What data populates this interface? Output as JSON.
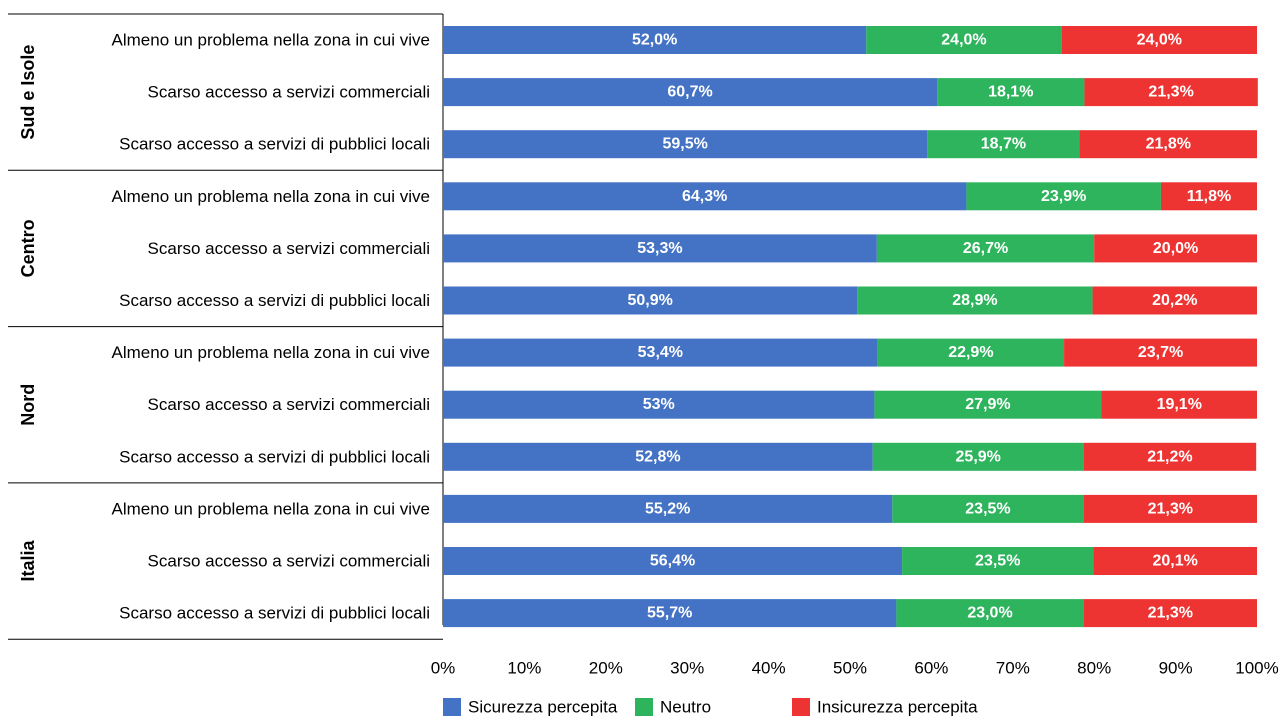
{
  "chart_data": {
    "type": "bar",
    "orientation": "horizontal",
    "stacked": true,
    "percent_stacked": true,
    "x_ticks": [
      "0%",
      "10%",
      "20%",
      "30%",
      "40%",
      "50%",
      "60%",
      "70%",
      "80%",
      "90%",
      "100%"
    ],
    "xlim": [
      0,
      100
    ],
    "grid": false,
    "legend_position": "bottom",
    "series": [
      {
        "name": "Sicurezza percepita",
        "color": "#4472C4"
      },
      {
        "name": "Neutro",
        "color": "#2DB45D"
      },
      {
        "name": "Insicurezza percepita",
        "color": "#EE3333"
      }
    ],
    "groups": [
      {
        "name": "Sud e Isole",
        "rows": [
          {
            "category": "Almeno un problema nella zona in cui vive",
            "values": [
              52.0,
              24.0,
              24.0
            ],
            "labels": [
              "52,0%",
              "24,0%",
              "24,0%"
            ]
          },
          {
            "category": "Scarso accesso a servizi commerciali",
            "values": [
              60.7,
              18.1,
              21.3
            ],
            "labels": [
              "60,7%",
              "18,1%",
              "21,3%"
            ]
          },
          {
            "category": "Scarso accesso a servizi di pubblici locali",
            "values": [
              59.5,
              18.7,
              21.8
            ],
            "labels": [
              "59,5%",
              "18,7%",
              "21,8%"
            ]
          }
        ]
      },
      {
        "name": "Centro",
        "rows": [
          {
            "category": "Almeno un problema nella zona in cui vive",
            "values": [
              64.3,
              23.9,
              11.8
            ],
            "labels": [
              "64,3%",
              "23,9%",
              "11,8%"
            ]
          },
          {
            "category": "Scarso accesso a servizi commerciali",
            "values": [
              53.3,
              26.7,
              20.0
            ],
            "labels": [
              "53,3%",
              "26,7%",
              "20,0%"
            ]
          },
          {
            "category": "Scarso accesso a servizi di pubblici locali",
            "values": [
              50.9,
              28.9,
              20.2
            ],
            "labels": [
              "50,9%",
              "28,9%",
              "20,2%"
            ]
          }
        ]
      },
      {
        "name": "Nord",
        "rows": [
          {
            "category": "Almeno un problema nella zona in cui vive",
            "values": [
              53.4,
              22.9,
              23.7
            ],
            "labels": [
              "53,4%",
              "22,9%",
              "23,7%"
            ]
          },
          {
            "category": "Scarso accesso a servizi commerciali",
            "values": [
              53.0,
              27.9,
              19.1
            ],
            "labels": [
              "53%",
              "27,9%",
              "19,1%"
            ]
          },
          {
            "category": "Scarso accesso a servizi di pubblici locali",
            "values": [
              52.8,
              25.9,
              21.2
            ],
            "labels": [
              "52,8%",
              "25,9%",
              "21,2%"
            ]
          }
        ]
      },
      {
        "name": "Italia",
        "rows": [
          {
            "category": "Almeno un problema nella zona in cui vive",
            "values": [
              55.2,
              23.5,
              21.3
            ],
            "labels": [
              "55,2%",
              "23,5%",
              "21,3%"
            ]
          },
          {
            "category": "Scarso accesso a servizi commerciali",
            "values": [
              56.4,
              23.5,
              20.1
            ],
            "labels": [
              "56,4%",
              "23,5%",
              "20,1%"
            ]
          },
          {
            "category": "Scarso accesso a servizi di pubblici locali",
            "values": [
              55.7,
              23.0,
              21.3
            ],
            "labels": [
              "55,7%",
              "23,0%",
              "21,3%"
            ]
          }
        ]
      }
    ]
  }
}
